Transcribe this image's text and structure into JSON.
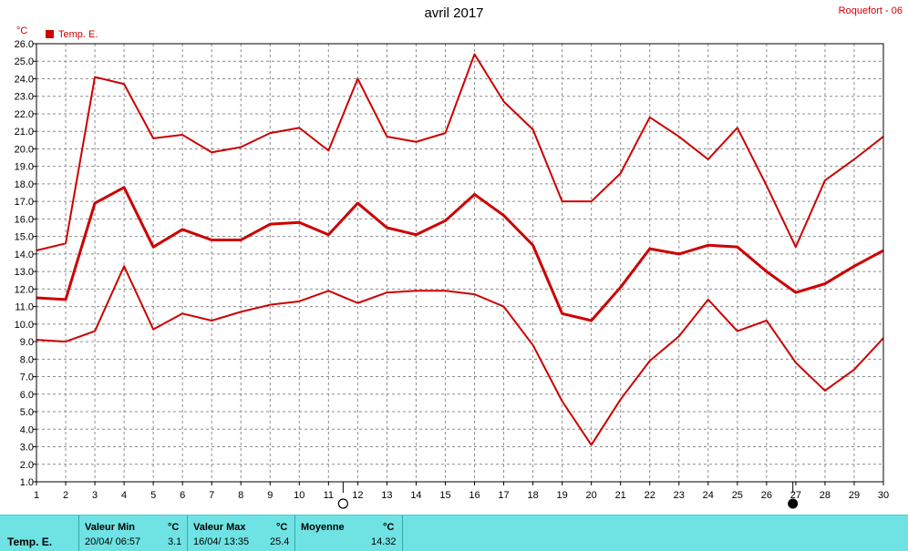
{
  "title": "avril 2017",
  "station": "Roquefort - 06",
  "unit": "°C",
  "colors": {
    "series": "#cc0000",
    "grid": "#8c8c8c",
    "panel": "#6fe3e3"
  },
  "chart_data": {
    "type": "line",
    "ylabel": "°C",
    "ylim": [
      1.0,
      26.0
    ],
    "ytick_step": 1.0,
    "x": [
      1,
      2,
      3,
      4,
      5,
      6,
      7,
      8,
      9,
      10,
      11,
      12,
      13,
      14,
      15,
      16,
      17,
      18,
      19,
      20,
      21,
      22,
      23,
      24,
      25,
      26,
      27,
      28,
      29,
      30
    ],
    "xlim": [
      1,
      30
    ],
    "grid": true,
    "legend": {
      "position": "top-left",
      "label": "Temp. E."
    },
    "moon_markers": [
      {
        "x": 11.5,
        "phase": "new-moon-outline"
      },
      {
        "x": 26.9,
        "phase": "full-moon-filled"
      }
    ],
    "series": [
      {
        "role": "max",
        "stroke": 2,
        "values": [
          14.2,
          14.6,
          24.1,
          23.7,
          20.6,
          20.8,
          19.8,
          20.1,
          20.9,
          21.2,
          19.9,
          24.0,
          20.7,
          20.4,
          20.9,
          25.4,
          22.7,
          21.1,
          17.0,
          17.0,
          18.6,
          21.8,
          20.7,
          19.4,
          21.2,
          17.9,
          14.4,
          18.2,
          19.4,
          20.7
        ]
      },
      {
        "role": "mean",
        "stroke": 3,
        "values": [
          11.5,
          11.4,
          16.9,
          17.8,
          14.4,
          15.4,
          14.8,
          14.8,
          15.7,
          15.8,
          15.1,
          16.9,
          15.5,
          15.1,
          15.9,
          17.4,
          16.2,
          14.5,
          10.6,
          10.2,
          12.1,
          14.3,
          14.0,
          14.5,
          14.4,
          13.0,
          11.8,
          12.3,
          13.3,
          14.2
        ]
      },
      {
        "role": "min",
        "stroke": 2,
        "values": [
          9.1,
          9.0,
          9.6,
          13.3,
          9.7,
          10.6,
          10.2,
          10.7,
          11.1,
          11.3,
          11.9,
          11.2,
          11.8,
          11.9,
          11.9,
          11.7,
          11.0,
          8.8,
          5.6,
          3.1,
          5.7,
          7.9,
          9.3,
          11.4,
          9.6,
          10.2,
          7.8,
          6.2,
          7.4,
          9.2
        ]
      }
    ]
  },
  "stats": {
    "row_label": "Temp. E.",
    "min": {
      "header": "Valeur Min",
      "unit": "°C",
      "datetime": "20/04/ 06:57",
      "value": "3.1"
    },
    "max": {
      "header": "Valeur Max",
      "unit": "°C",
      "datetime": "16/04/ 13:35",
      "value": "25.4"
    },
    "mean": {
      "header": "Moyenne",
      "unit": "°C",
      "value": "14.32"
    }
  }
}
